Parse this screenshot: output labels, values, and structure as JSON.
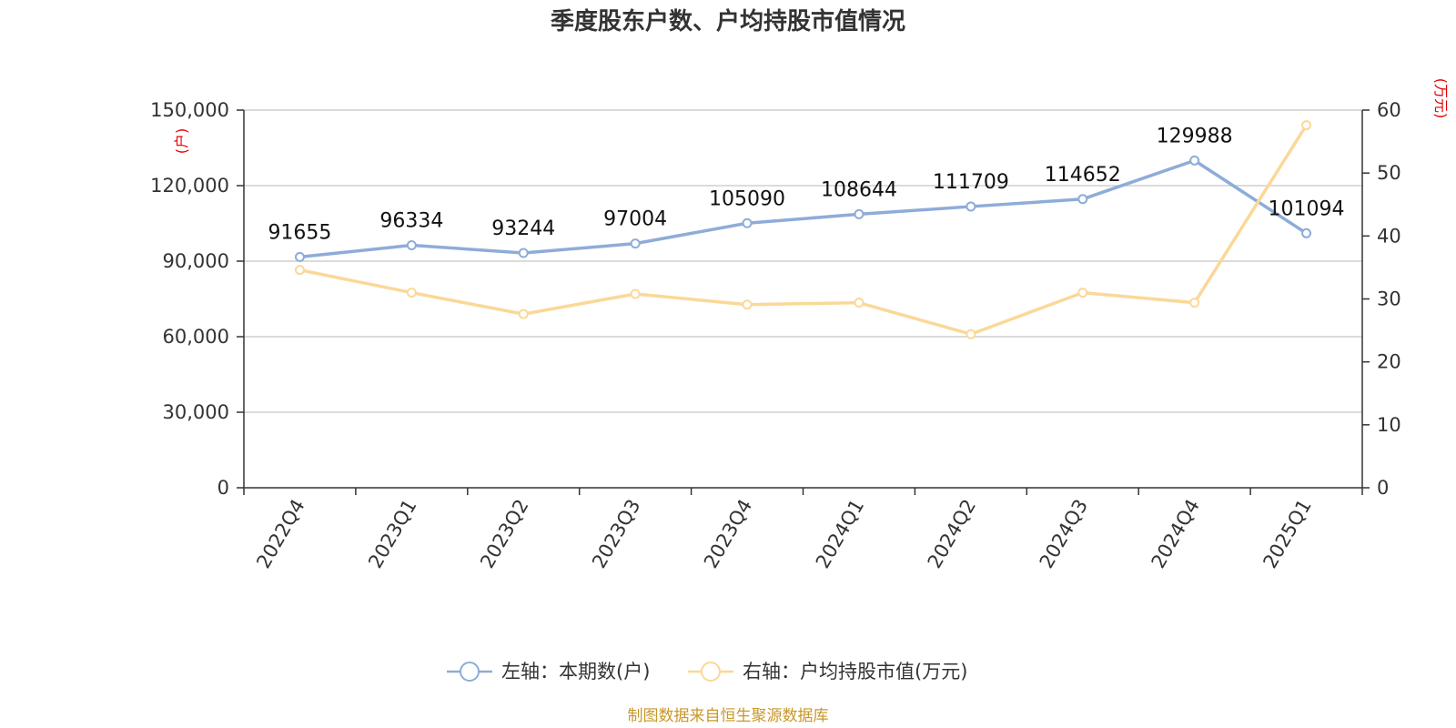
{
  "chart_data": {
    "type": "line",
    "title": "季度股东户数、户均持股市值情况",
    "categories": [
      "2022Q4",
      "2023Q1",
      "2023Q2",
      "2023Q3",
      "2023Q4",
      "2024Q1",
      "2024Q2",
      "2024Q3",
      "2024Q4",
      "2025Q1"
    ],
    "left_axis": {
      "unit_label": "(户)",
      "ylim": [
        0,
        150000
      ],
      "ticks": [
        0,
        30000,
        60000,
        90000,
        120000,
        150000
      ],
      "tick_labels": [
        "0",
        "30,000",
        "60,000",
        "90,000",
        "120,000",
        "150,000"
      ]
    },
    "right_axis": {
      "unit_label": "(万元)",
      "ylim": [
        0,
        60
      ],
      "ticks": [
        0,
        10,
        20,
        30,
        40,
        50,
        60
      ],
      "tick_labels": [
        "0",
        "10",
        "20",
        "30",
        "40",
        "50",
        "60"
      ]
    },
    "series": [
      {
        "name": "左轴：本期数(户)",
        "axis": "left",
        "color": "#8eacd8",
        "values": [
          91655,
          96334,
          93244,
          97004,
          105090,
          108644,
          111709,
          114652,
          129988,
          101094
        ],
        "labels": [
          "91655",
          "96334",
          "93244",
          "97004",
          "105090",
          "108644",
          "111709",
          "114652",
          "129988",
          "101094"
        ]
      },
      {
        "name": "右轴：户均持股市值(万元)",
        "axis": "right",
        "color": "#fbd898",
        "values": [
          34.6,
          31.0,
          27.6,
          30.8,
          29.1,
          29.4,
          24.4,
          31.0,
          29.4,
          57.6
        ]
      }
    ],
    "grid": true,
    "legend_position": "bottom-center",
    "source": "制图数据来自恒生聚源数据库"
  }
}
